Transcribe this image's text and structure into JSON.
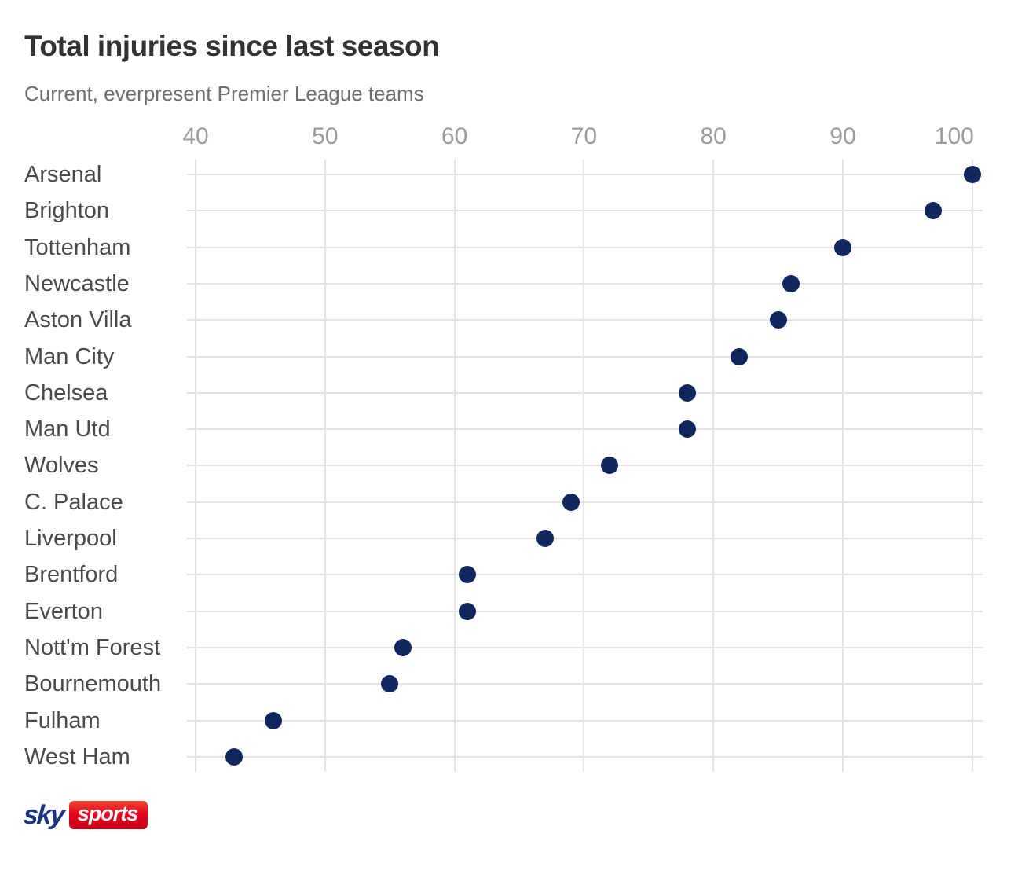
{
  "chart_data": {
    "type": "scatter",
    "title": "Total injuries since last season",
    "subtitle": "Current, everpresent Premier League teams",
    "orientation": "horizontal_dot_plot",
    "categories": [
      "Arsenal",
      "Brighton",
      "Tottenham",
      "Newcastle",
      "Aston Villa",
      "Man City",
      "Chelsea",
      "Man Utd",
      "Wolves",
      "C. Palace",
      "Liverpool",
      "Brentford",
      "Everton",
      "Nott'm Forest",
      "Bournemouth",
      "Fulham",
      "West Ham"
    ],
    "values": [
      100,
      97,
      90,
      86,
      85,
      82,
      78,
      78,
      72,
      69,
      67,
      61,
      61,
      56,
      55,
      46,
      43
    ],
    "x_ticks": [
      40,
      50,
      60,
      70,
      80,
      90,
      100
    ],
    "xlim": [
      40,
      101
    ],
    "xlabel": "",
    "ylabel": "",
    "grid": true,
    "legend": false,
    "dot_color": "#12265e",
    "gridline_color": "#e3e3e3",
    "title_color": "#333333",
    "subtitle_color": "#6e6e6e",
    "tick_label_color": "#9c9c9c",
    "category_label_color": "#4a4a4a"
  },
  "footer": {
    "logo": {
      "sky_text": "sky",
      "sports_text": "sports",
      "sky_color": "#1b3482",
      "sports_bg_color": "#e4021e",
      "sports_text_color": "#ffffff"
    }
  }
}
